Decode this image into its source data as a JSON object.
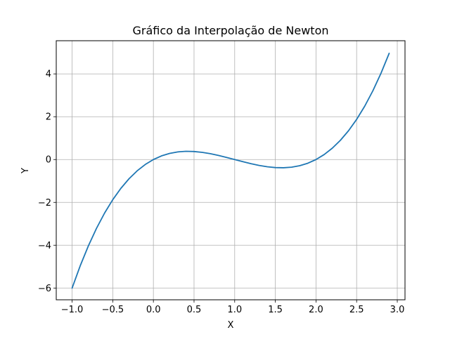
{
  "chart_data": {
    "type": "line",
    "title": "Gráfico da Interpolação de Newton",
    "xlabel": "X",
    "ylabel": "Y",
    "xlim": [
      -1.195,
      3.095
    ],
    "ylim": [
      -6.5485,
      5.5485
    ],
    "grid": true,
    "x_ticks": [
      -1.0,
      -0.5,
      0.0,
      0.5,
      1.0,
      1.5,
      2.0,
      2.5,
      3.0
    ],
    "x_tick_labels": [
      "−1.0",
      "−0.5",
      "0.0",
      "0.5",
      "1.0",
      "1.5",
      "2.0",
      "2.5",
      "3.0"
    ],
    "y_ticks": [
      -6,
      -4,
      -2,
      0,
      2,
      4
    ],
    "y_tick_labels": [
      "−6",
      "−4",
      "−2",
      "0",
      "2",
      "4"
    ],
    "series": [
      {
        "color": "#1f77b4",
        "x": [
          -1.0,
          -0.9,
          -0.8,
          -0.7,
          -0.6,
          -0.5,
          -0.4,
          -0.3,
          -0.2,
          -0.1,
          0.0,
          0.1,
          0.2,
          0.3,
          0.4,
          0.5,
          0.6,
          0.7,
          0.8,
          0.9,
          1.0,
          1.1,
          1.2,
          1.3,
          1.4,
          1.5,
          1.6,
          1.7,
          1.8,
          1.9,
          2.0,
          2.1,
          2.2,
          2.3,
          2.4,
          2.5,
          2.6,
          2.7,
          2.8,
          2.9
        ],
        "y": [
          -6.0,
          -4.959,
          -4.032,
          -3.213,
          -2.496,
          -1.875,
          -1.344,
          -0.897,
          -0.528,
          -0.231,
          0.0,
          0.171,
          0.288,
          0.357,
          0.384,
          0.375,
          0.336,
          0.273,
          0.192,
          0.099,
          0.0,
          -0.099,
          -0.192,
          -0.273,
          -0.336,
          -0.375,
          -0.384,
          -0.357,
          -0.288,
          -0.171,
          0.0,
          0.231,
          0.528,
          0.897,
          1.344,
          1.875,
          2.496,
          3.213,
          4.032,
          4.959
        ]
      }
    ]
  }
}
